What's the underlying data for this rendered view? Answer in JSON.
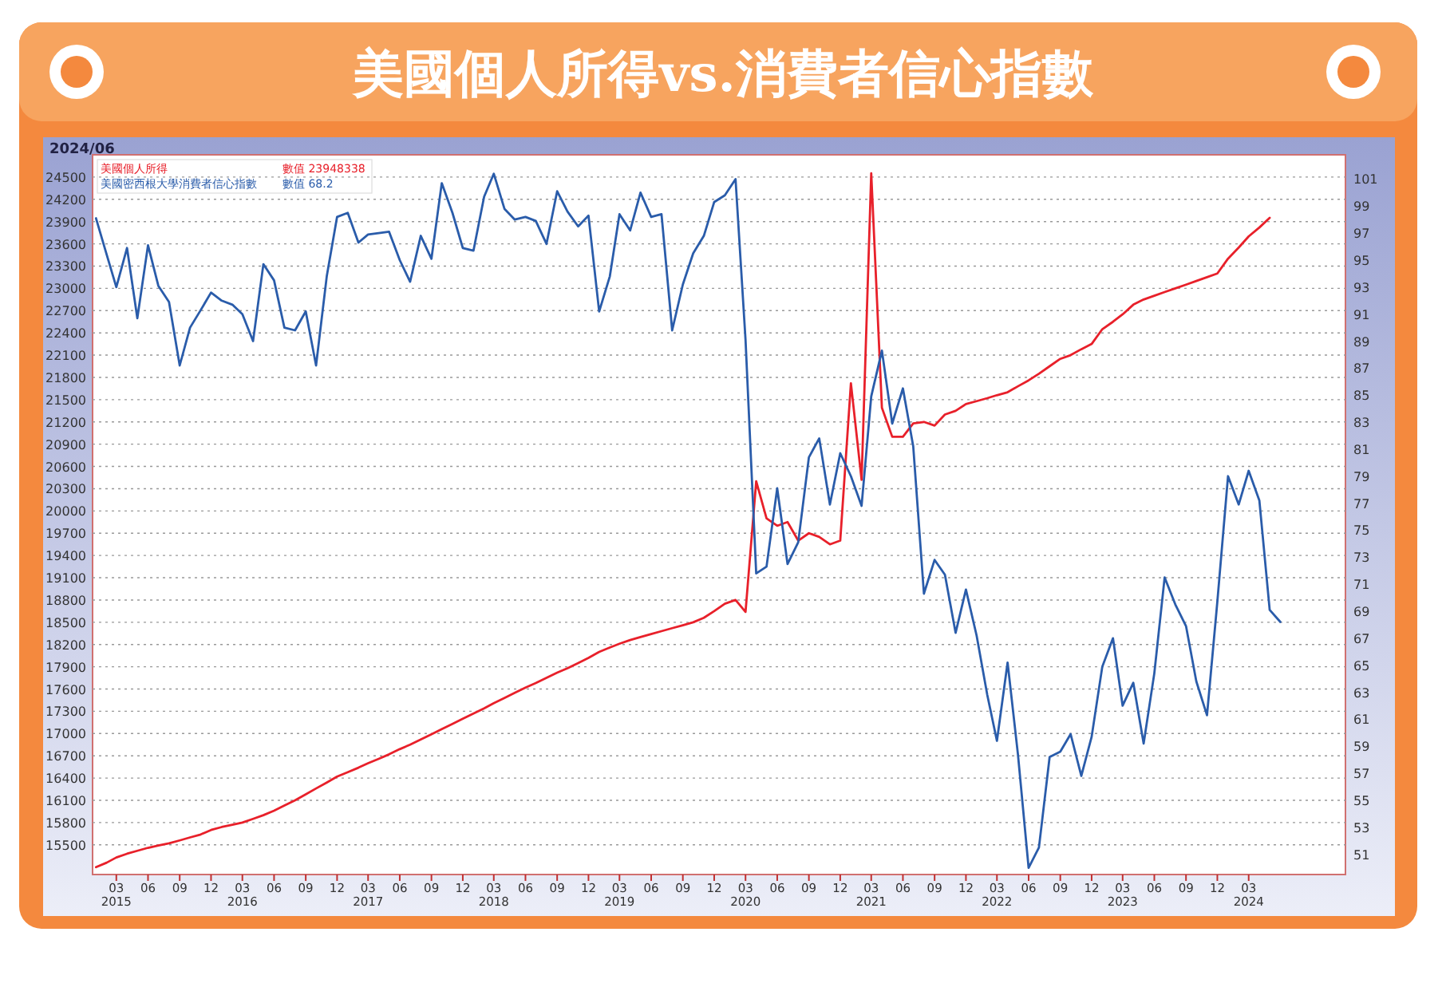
{
  "chart_data": {
    "type": "line",
    "title": "美國個人所得vs.消費者信心指數",
    "annotations": [
      "2024/06",
      "數值 23948338",
      "數值 68.2"
    ],
    "x": [
      "2015-01",
      "2015-02",
      "2015-03",
      "2015-04",
      "2015-05",
      "2015-06",
      "2015-07",
      "2015-08",
      "2015-09",
      "2015-10",
      "2015-11",
      "2015-12",
      "2016-01",
      "2016-02",
      "2016-03",
      "2016-04",
      "2016-05",
      "2016-06",
      "2016-07",
      "2016-08",
      "2016-09",
      "2016-10",
      "2016-11",
      "2016-12",
      "2017-01",
      "2017-02",
      "2017-03",
      "2017-04",
      "2017-05",
      "2017-06",
      "2017-07",
      "2017-08",
      "2017-09",
      "2017-10",
      "2017-11",
      "2017-12",
      "2018-01",
      "2018-02",
      "2018-03",
      "2018-04",
      "2018-05",
      "2018-06",
      "2018-07",
      "2018-08",
      "2018-09",
      "2018-10",
      "2018-11",
      "2018-12",
      "2019-01",
      "2019-02",
      "2019-03",
      "2019-04",
      "2019-05",
      "2019-06",
      "2019-07",
      "2019-08",
      "2019-09",
      "2019-10",
      "2019-11",
      "2019-12",
      "2020-01",
      "2020-02",
      "2020-03",
      "2020-04",
      "2020-05",
      "2020-06",
      "2020-07",
      "2020-08",
      "2020-09",
      "2020-10",
      "2020-11",
      "2020-12",
      "2021-01",
      "2021-02",
      "2021-03",
      "2021-04",
      "2021-05",
      "2021-06",
      "2021-07",
      "2021-08",
      "2021-09",
      "2021-10",
      "2021-11",
      "2021-12",
      "2022-01",
      "2022-02",
      "2022-03",
      "2022-04",
      "2022-05",
      "2022-06",
      "2022-07",
      "2022-08",
      "2022-09",
      "2022-10",
      "2022-11",
      "2022-12",
      "2023-01",
      "2023-02",
      "2023-03",
      "2023-04",
      "2023-05",
      "2023-06",
      "2023-07",
      "2023-08",
      "2023-09",
      "2023-10",
      "2023-11",
      "2023-12",
      "2024-01",
      "2024-02",
      "2024-03",
      "2024-04",
      "2024-05",
      "2024-06"
    ],
    "series": [
      {
        "name": "美國個人所得",
        "color": "#e8202a",
        "values": [
          15200,
          15260,
          15330,
          15380,
          15420,
          15460,
          15490,
          15520,
          15560,
          15600,
          15640,
          15700,
          15740,
          15770,
          15800,
          15850,
          15900,
          15960,
          16030,
          16100,
          16180,
          16260,
          16340,
          16420,
          16480,
          16540,
          16600,
          16660,
          16720,
          16790,
          16850,
          16920,
          16990,
          17060,
          17130,
          17200,
          17270,
          17340,
          17410,
          17480,
          17550,
          17620,
          17680,
          17750,
          17820,
          17880,
          17950,
          18020,
          18100,
          18160,
          18210,
          18260,
          18300,
          18340,
          18380,
          18420,
          18460,
          18500,
          18560,
          18650,
          18750,
          18800,
          18640,
          20400,
          19900,
          19800,
          19850,
          19600,
          19700,
          19650,
          19550,
          19600,
          21720,
          20420,
          24550,
          21390,
          21000,
          21000,
          21180,
          21200,
          21150,
          21300,
          21350,
          21440,
          21480,
          21520,
          21560,
          21600,
          21680,
          21760,
          21850,
          21950,
          22050,
          22100,
          22180,
          22250,
          22450,
          22550,
          22650,
          22780,
          22850,
          22900,
          22950,
          23000,
          23050,
          23100,
          23150,
          23200,
          23400,
          23550,
          23700,
          23820,
          23950,
          null
        ]
      },
      {
        "name": "美國密西根大學消費者信心指數",
        "color": "#2a5caa",
        "axis": "y2",
        "values": [
          98.1,
          95.4,
          93.0,
          95.9,
          90.7,
          96.1,
          93.1,
          91.9,
          87.2,
          90.0,
          91.3,
          92.6,
          92.0,
          91.7,
          91.0,
          89.0,
          94.7,
          93.5,
          90.0,
          89.8,
          91.2,
          87.2,
          93.8,
          98.2,
          98.5,
          96.3,
          96.9,
          97.0,
          97.1,
          95.0,
          93.4,
          96.8,
          95.1,
          100.7,
          98.5,
          95.9,
          95.7,
          99.7,
          101.4,
          98.8,
          98.0,
          98.2,
          97.9,
          96.2,
          100.1,
          98.6,
          97.5,
          98.3,
          91.2,
          93.8,
          98.4,
          97.2,
          100.0,
          98.2,
          98.4,
          89.8,
          93.2,
          95.5,
          96.8,
          99.3,
          99.8,
          101.0,
          89.1,
          71.8,
          72.3,
          78.1,
          72.5,
          74.1,
          80.4,
          81.8,
          76.9,
          80.7,
          79.0,
          76.8,
          84.9,
          88.3,
          82.9,
          85.5,
          81.2,
          70.3,
          72.8,
          71.7,
          67.4,
          70.6,
          67.2,
          62.8,
          59.4,
          65.2,
          58.4,
          50.0,
          51.5,
          58.2,
          58.6,
          59.9,
          56.8,
          59.7,
          64.9,
          67.0,
          62.0,
          63.7,
          59.2,
          64.4,
          71.5,
          69.5,
          67.9,
          63.8,
          61.3,
          69.7,
          79.0,
          76.9,
          79.4,
          77.2,
          69.1,
          68.2
        ]
      }
    ],
    "xlim": [
      "2014-12-22",
      "2024-12-07"
    ],
    "xticks": [
      {
        "value": "2015-03",
        "label": "03\n2015"
      },
      {
        "value": "2015-06",
        "label": "06"
      },
      {
        "value": "2015-09",
        "label": "09"
      },
      {
        "value": "2015-12",
        "label": "12"
      },
      {
        "value": "2016-03",
        "label": "03\n2016"
      },
      {
        "value": "2016-06",
        "label": "06"
      },
      {
        "value": "2016-09",
        "label": "09"
      },
      {
        "value": "2016-12",
        "label": "12"
      },
      {
        "value": "2017-03",
        "label": "03\n2017"
      },
      {
        "value": "2017-06",
        "label": "06"
      },
      {
        "value": "2017-09",
        "label": "09"
      },
      {
        "value": "2017-12",
        "label": "12"
      },
      {
        "value": "2018-03",
        "label": "03\n2018"
      },
      {
        "value": "2018-06",
        "label": "06"
      },
      {
        "value": "2018-09",
        "label": "09"
      },
      {
        "value": "2018-12",
        "label": "12"
      },
      {
        "value": "2019-03",
        "label": "03\n2019"
      },
      {
        "value": "2019-06",
        "label": "06"
      },
      {
        "value": "2019-09",
        "label": "09"
      },
      {
        "value": "2019-12",
        "label": "12"
      },
      {
        "value": "2020-03",
        "label": "03\n2020"
      },
      {
        "value": "2020-06",
        "label": "06"
      },
      {
        "value": "2020-09",
        "label": "09"
      },
      {
        "value": "2020-12",
        "label": "12"
      },
      {
        "value": "2021-03",
        "label": "03\n2021"
      },
      {
        "value": "2021-06",
        "label": "06"
      },
      {
        "value": "2021-09",
        "label": "09"
      },
      {
        "value": "2021-12",
        "label": "12"
      },
      {
        "value": "2022-03",
        "label": "03\n2022"
      },
      {
        "value": "2022-06",
        "label": "06"
      },
      {
        "value": "2022-09",
        "label": "09"
      },
      {
        "value": "2022-12",
        "label": "12"
      },
      {
        "value": "2023-03",
        "label": "03\n2023"
      },
      {
        "value": "2023-06",
        "label": "06"
      },
      {
        "value": "2023-09",
        "label": "09"
      },
      {
        "value": "2023-12",
        "label": "12"
      },
      {
        "value": "2024-03",
        "label": "03\n2024"
      }
    ],
    "ylim": [
      15100,
      24800
    ],
    "yticks": [
      15500,
      15800,
      16100,
      16400,
      16700,
      17000,
      17300,
      17600,
      17900,
      18200,
      18500,
      18800,
      19100,
      19400,
      19700,
      20000,
      20300,
      20600,
      20900,
      21200,
      21500,
      21800,
      22100,
      22400,
      22700,
      23000,
      23300,
      23600,
      23900,
      24200,
      24500
    ],
    "y2lim": [
      49.5,
      102.8
    ],
    "y2ticks": [
      51,
      53,
      55,
      57,
      59,
      61,
      63,
      65,
      67,
      69,
      71,
      73,
      75,
      77,
      79,
      81,
      83,
      85,
      87,
      89,
      91,
      93,
      95,
      97,
      99,
      101
    ],
    "grid": "y",
    "legend": "top left",
    "line_style": "solid",
    "marker": "none"
  }
}
